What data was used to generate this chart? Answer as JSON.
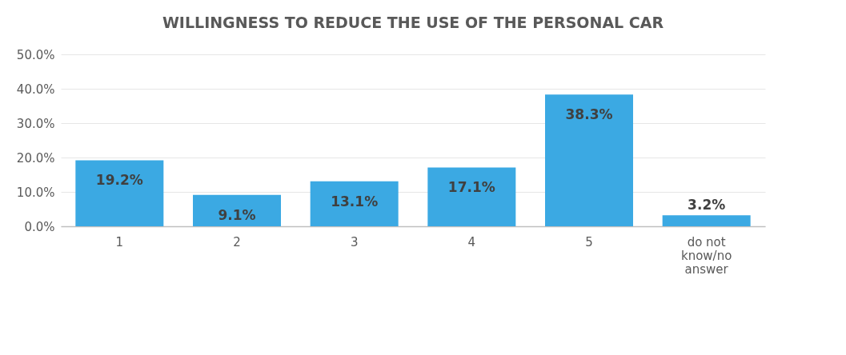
{
  "chart_data": {
    "type": "bar",
    "title": "WILLINGNESS TO REDUCE THE USE OF THE PERSONAL CAR",
    "categories": [
      "1",
      "2",
      "3",
      "4",
      "5",
      "do not know/no answer"
    ],
    "values": [
      19.2,
      9.1,
      13.1,
      17.1,
      38.3,
      3.2
    ],
    "value_labels": [
      "19.2%",
      "9.1%",
      "13.1%",
      "17.1%",
      "38.3%",
      "3.2%"
    ],
    "color": "#3ba9e3",
    "ylim": [
      0,
      50
    ],
    "yticks": [
      {
        "value": 0,
        "label": "0.0%"
      },
      {
        "value": 10,
        "label": "10.0%"
      },
      {
        "value": 20,
        "label": "20.0%"
      },
      {
        "value": 30,
        "label": "30.0%"
      },
      {
        "value": 40,
        "label": "40.0%"
      },
      {
        "value": 50,
        "label": "50.0%"
      }
    ],
    "grid": "y"
  }
}
